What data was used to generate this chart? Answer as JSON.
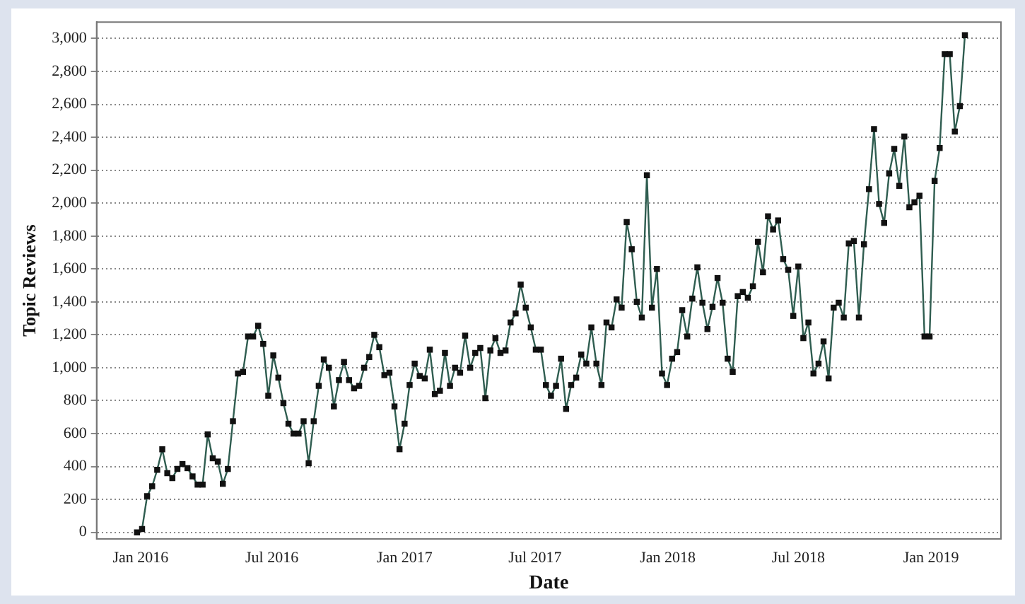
{
  "chart_data": {
    "type": "line",
    "xlabel": "Date",
    "ylabel": "Topic Reviews",
    "grid": "y",
    "legend": false,
    "marker": "square",
    "line_style": "solid",
    "xlim": [
      "2015-11-01",
      "2019-04-08"
    ],
    "xticks": [
      {
        "value": "2016-01-01",
        "label": "Jan 2016"
      },
      {
        "value": "2016-07-01",
        "label": "Jul 2016"
      },
      {
        "value": "2017-01-01",
        "label": "Jan 2017"
      },
      {
        "value": "2017-07-01",
        "label": "Jul 2017"
      },
      {
        "value": "2018-01-01",
        "label": "Jan 2018"
      },
      {
        "value": "2018-07-01",
        "label": "Jul 2018"
      },
      {
        "value": "2019-01-01",
        "label": "Jan 2019"
      }
    ],
    "ylim": [
      -40,
      3100
    ],
    "yticks": [
      0,
      {
        "value": 200,
        "label": "200"
      },
      {
        "value": 400,
        "label": "400"
      },
      {
        "value": 600,
        "label": "600"
      },
      {
        "value": 800,
        "label": "800"
      },
      {
        "value": 1000,
        "label": "1,000"
      },
      {
        "value": 1200,
        "label": "1,200"
      },
      {
        "value": 1400,
        "label": "1,400"
      },
      {
        "value": 1600,
        "label": "1,600"
      },
      {
        "value": 1800,
        "label": "1,800"
      },
      {
        "value": 2000,
        "label": "2,000"
      },
      {
        "value": 2200,
        "label": "2,200"
      },
      {
        "value": 2400,
        "label": "2,400"
      },
      {
        "value": 2600,
        "label": "2,600"
      },
      {
        "value": 2800,
        "label": "2,800"
      },
      {
        "value": 3000,
        "label": "3,000"
      }
    ],
    "x": [
      "2015-12-27",
      "2016-01-03",
      "2016-01-10",
      "2016-01-17",
      "2016-01-24",
      "2016-01-31",
      "2016-02-07",
      "2016-02-14",
      "2016-02-21",
      "2016-02-28",
      "2016-03-06",
      "2016-03-13",
      "2016-03-20",
      "2016-03-27",
      "2016-04-03",
      "2016-04-10",
      "2016-04-17",
      "2016-04-24",
      "2016-05-01",
      "2016-05-08",
      "2016-05-15",
      "2016-05-22",
      "2016-05-29",
      "2016-06-05",
      "2016-06-12",
      "2016-06-19",
      "2016-06-26",
      "2016-07-03",
      "2016-07-10",
      "2016-07-17",
      "2016-07-24",
      "2016-07-31",
      "2016-08-07",
      "2016-08-14",
      "2016-08-21",
      "2016-08-28",
      "2016-09-04",
      "2016-09-11",
      "2016-09-18",
      "2016-09-25",
      "2016-10-02",
      "2016-10-09",
      "2016-10-16",
      "2016-10-23",
      "2016-10-30",
      "2016-11-06",
      "2016-11-13",
      "2016-11-20",
      "2016-11-27",
      "2016-12-04",
      "2016-12-11",
      "2016-12-18",
      "2016-12-25",
      "2017-01-01",
      "2017-01-08",
      "2017-01-15",
      "2017-01-22",
      "2017-01-29",
      "2017-02-05",
      "2017-02-12",
      "2017-02-19",
      "2017-02-26",
      "2017-03-05",
      "2017-03-12",
      "2017-03-19",
      "2017-03-26",
      "2017-04-02",
      "2017-04-09",
      "2017-04-16",
      "2017-04-23",
      "2017-04-30",
      "2017-05-07",
      "2017-05-14",
      "2017-05-21",
      "2017-05-28",
      "2017-06-04",
      "2017-06-11",
      "2017-06-18",
      "2017-06-25",
      "2017-07-02",
      "2017-07-09",
      "2017-07-16",
      "2017-07-23",
      "2017-07-30",
      "2017-08-06",
      "2017-08-13",
      "2017-08-20",
      "2017-08-27",
      "2017-09-03",
      "2017-09-10",
      "2017-09-17",
      "2017-09-24",
      "2017-10-01",
      "2017-10-08",
      "2017-10-15",
      "2017-10-22",
      "2017-10-29",
      "2017-11-05",
      "2017-11-12",
      "2017-11-19",
      "2017-11-26",
      "2017-12-03",
      "2017-12-10",
      "2017-12-17",
      "2017-12-24",
      "2017-12-31",
      "2018-01-07",
      "2018-01-14",
      "2018-01-21",
      "2018-01-28",
      "2018-02-04",
      "2018-02-11",
      "2018-02-18",
      "2018-02-25",
      "2018-03-04",
      "2018-03-11",
      "2018-03-18",
      "2018-03-25",
      "2018-04-01",
      "2018-04-08",
      "2018-04-15",
      "2018-04-22",
      "2018-04-29",
      "2018-05-06",
      "2018-05-13",
      "2018-05-20",
      "2018-05-27",
      "2018-06-03",
      "2018-06-10",
      "2018-06-17",
      "2018-06-24",
      "2018-07-01",
      "2018-07-08",
      "2018-07-15",
      "2018-07-22",
      "2018-07-29",
      "2018-08-05",
      "2018-08-12",
      "2018-08-19",
      "2018-08-26",
      "2018-09-02",
      "2018-09-09",
      "2018-09-16",
      "2018-09-23",
      "2018-09-30",
      "2018-10-07",
      "2018-10-14",
      "2018-10-21",
      "2018-10-28",
      "2018-11-04",
      "2018-11-11",
      "2018-11-18",
      "2018-11-25",
      "2018-12-02",
      "2018-12-09",
      "2018-12-16",
      "2018-12-23",
      "2018-12-30",
      "2019-01-06",
      "2019-01-13",
      "2019-01-20",
      "2019-01-27",
      "2019-02-03",
      "2019-02-10",
      "2019-02-17"
    ],
    "series": [
      {
        "color": "#2f5d50",
        "values": [
          0,
          20,
          220,
          280,
          380,
          505,
          360,
          330,
          385,
          415,
          390,
          340,
          290,
          290,
          595,
          450,
          430,
          295,
          385,
          675,
          965,
          975,
          1190,
          1190,
          1255,
          1145,
          830,
          1075,
          940,
          785,
          660,
          600,
          600,
          675,
          420,
          675,
          890,
          1050,
          1000,
          765,
          925,
          1035,
          925,
          875,
          890,
          1000,
          1065,
          1200,
          1125,
          955,
          970,
          765,
          505,
          660,
          895,
          1025,
          950,
          935,
          1110,
          840,
          860,
          1090,
          890,
          1000,
          970,
          1195,
          1000,
          1090,
          1120,
          815,
          1105,
          1180,
          1090,
          1105,
          1275,
          1330,
          1505,
          1365,
          1245,
          1110,
          1110,
          895,
          830,
          890,
          1055,
          750,
          895,
          940,
          1080,
          1025,
          1245,
          1025,
          895,
          1275,
          1245,
          1415,
          1365,
          1885,
          1720,
          1400,
          1305,
          2170,
          1365,
          1600,
          965,
          895,
          1055,
          1095,
          1350,
          1190,
          1420,
          1610,
          1395,
          1235,
          1370,
          1545,
          1395,
          1055,
          975,
          1435,
          1460,
          1425,
          1495,
          1765,
          1580,
          1920,
          1840,
          1895,
          1660,
          1595,
          1315,
          1615,
          1180,
          1275,
          965,
          1025,
          1160,
          935,
          1365,
          1395,
          1305,
          1755,
          1770,
          1305,
          1750,
          2085,
          2450,
          1995,
          1880,
          2180,
          2330,
          2105,
          2405,
          1975,
          2005,
          2045,
          1190,
          1190,
          2135,
          2335,
          2905,
          2905,
          2435,
          2590,
          3020
        ]
      }
    ]
  }
}
